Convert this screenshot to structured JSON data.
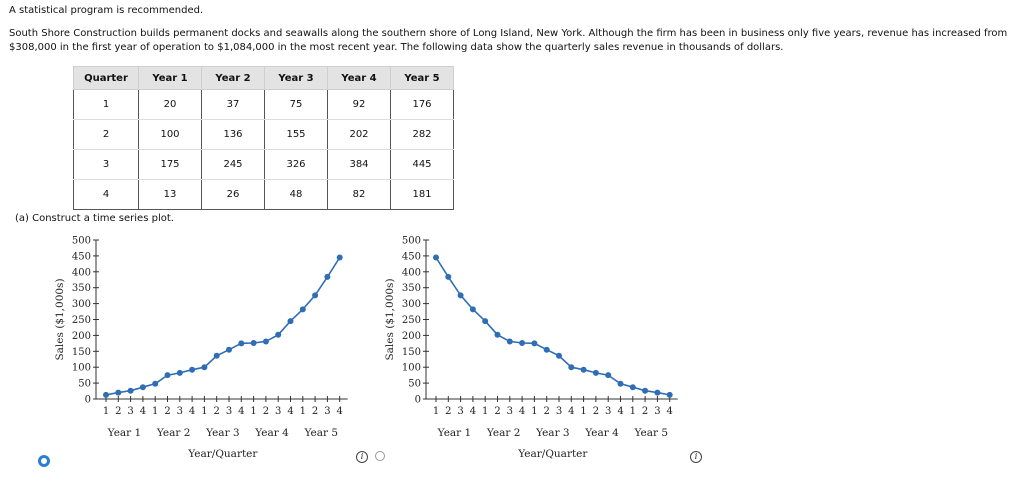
{
  "intro": "A statistical program is recommended.",
  "problem": "South Shore Construction builds permanent docks and seawalls along the southern shore of Long Island, New York. Although the firm has been in business only five years, revenue has increased from $308,000 in the first year of operation to $1,084,000 in the most recent year. The following data show the quarterly sales revenue in thousands of dollars.",
  "table": {
    "headers": [
      "Quarter",
      "Year 1",
      "Year 2",
      "Year 3",
      "Year 4",
      "Year 5"
    ],
    "rows": [
      [
        "1",
        "20",
        "37",
        "75",
        "92",
        "176"
      ],
      [
        "2",
        "100",
        "136",
        "155",
        "202",
        "282"
      ],
      [
        "3",
        "175",
        "245",
        "326",
        "384",
        "445"
      ],
      [
        "4",
        "13",
        "26",
        "48",
        "82",
        "181"
      ]
    ]
  },
  "part_a": "(a)  Construct a time series plot.",
  "info_glyph": "i",
  "chart_data": [
    {
      "type": "line",
      "ylabel": "Sales ($1,000s)",
      "xlabel": "Year/Quarter",
      "ylim": [
        0,
        500
      ],
      "yticks": [
        0,
        50,
        100,
        150,
        200,
        250,
        300,
        350,
        400,
        450,
        500
      ],
      "quarter_labels": [
        "1",
        "2",
        "3",
        "4",
        "1",
        "2",
        "3",
        "4",
        "1",
        "2",
        "3",
        "4",
        "1",
        "2",
        "3",
        "4",
        "1",
        "2",
        "3",
        "4"
      ],
      "year_labels": [
        "Year 1",
        "Year 2",
        "Year 3",
        "Year 4",
        "Year 5"
      ],
      "color": "#2f6db5",
      "values": [
        13,
        20,
        26,
        37,
        48,
        75,
        82,
        92,
        100,
        136,
        155,
        175,
        176,
        181,
        202,
        245,
        282,
        326,
        384,
        445
      ]
    },
    {
      "type": "line",
      "ylabel": "Sales ($1,000s)",
      "xlabel": "Year/Quarter",
      "ylim": [
        0,
        500
      ],
      "yticks": [
        0,
        50,
        100,
        150,
        200,
        250,
        300,
        350,
        400,
        450,
        500
      ],
      "quarter_labels": [
        "1",
        "2",
        "3",
        "4",
        "1",
        "2",
        "3",
        "4",
        "1",
        "2",
        "3",
        "4",
        "1",
        "2",
        "3",
        "4",
        "1",
        "2",
        "3",
        "4"
      ],
      "year_labels": [
        "Year 1",
        "Year 2",
        "Year 3",
        "Year 4",
        "Year 5"
      ],
      "color": "#2f6db5",
      "values": [
        445,
        384,
        326,
        282,
        245,
        202,
        181,
        176,
        175,
        155,
        136,
        100,
        92,
        82,
        75,
        48,
        37,
        26,
        20,
        13
      ]
    }
  ]
}
